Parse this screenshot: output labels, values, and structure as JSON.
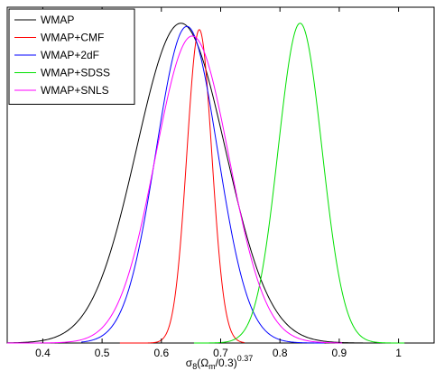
{
  "chart_data": {
    "type": "line",
    "title": "",
    "xlabel": {
      "base": "σ",
      "sub1": "8",
      "mid": "(Ω",
      "sub2": "m",
      "tail": "/0.3)",
      "sup": "0.37"
    },
    "ylabel": "",
    "xlim": [
      0.34,
      1.06
    ],
    "ylim": [
      0,
      1.05
    ],
    "xticks": [
      0.4,
      0.5,
      0.6,
      0.7,
      0.8,
      0.9,
      1.0
    ],
    "xtick_labels": [
      "0.4",
      "0.5",
      "0.6",
      "0.7",
      "0.8",
      "0.9",
      "1"
    ],
    "yticks_shown": false,
    "grid": false,
    "legend_position": "top-left",
    "series": [
      {
        "name": "WMAP",
        "color": "#000000",
        "mean": 0.633,
        "sigma": 0.075,
        "peak": 1.0,
        "range": [
          0.34,
          0.94
        ]
      },
      {
        "name": "WMAP+CMF",
        "color": "#ff0000",
        "mean": 0.664,
        "sigma": 0.021,
        "peak": 0.98,
        "range": [
          0.53,
          0.74
        ]
      },
      {
        "name": "WMAP+2dF",
        "color": "#0000ff",
        "mean": 0.643,
        "sigma": 0.052,
        "peak": 0.99,
        "range": [
          0.465,
          0.875
        ]
      },
      {
        "name": "WMAP+SDSS",
        "color": "#00e000",
        "mean": 0.834,
        "sigma": 0.037,
        "peak": 1.0,
        "range": [
          0.655,
          1.01
        ]
      },
      {
        "name": "WMAP+SNLS",
        "color": "#ff00ff",
        "mean": 0.652,
        "sigma": 0.062,
        "peak": 0.96,
        "range": [
          0.34,
          0.905
        ]
      }
    ]
  }
}
